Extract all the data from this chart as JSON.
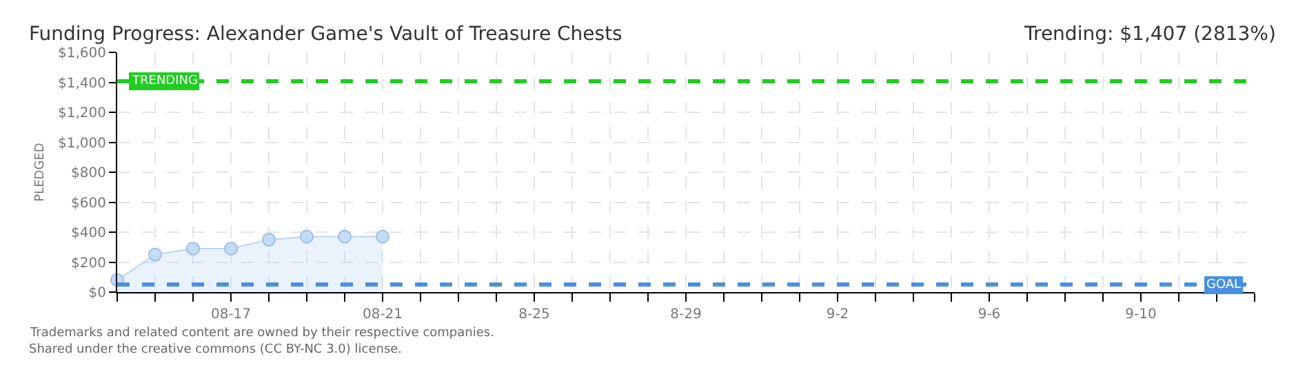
{
  "chart_data": {
    "type": "area",
    "title": "Funding Progress: Alexander Game's Vault of Treasure Chests",
    "subtitle": "Trending: $1,407 (2813%)",
    "ylabel": "PLEDGED",
    "x": [
      "--08-14",
      "--08-15",
      "--08-16",
      "--08-17",
      "--08-18",
      "--08-19",
      "--08-20",
      "--08-21"
    ],
    "series": [
      {
        "color": "#b8d4f4",
        "values": [
          80,
          250,
          290,
          290,
          350,
          370,
          370,
          370
        ]
      }
    ],
    "marker": "circle",
    "grid": true,
    "xlim": [
      "--08-14",
      "--09-13"
    ],
    "xticks": [
      {
        "value": "--08-14",
        "label": null
      },
      {
        "value": "--08-15",
        "label": null
      },
      {
        "value": "--08-16",
        "label": null
      },
      {
        "value": "--08-17",
        "label": "08-17"
      },
      {
        "value": "--08-18",
        "label": null
      },
      {
        "value": "--08-19",
        "label": null
      },
      {
        "value": "--08-20",
        "label": null
      },
      {
        "value": "--08-21",
        "label": "08-21"
      },
      {
        "value": "--08-22",
        "label": null
      },
      {
        "value": "--08-23",
        "label": null
      },
      {
        "value": "--08-24",
        "label": null
      },
      {
        "value": "--08-25",
        "label": "8-25"
      },
      {
        "value": "--08-26",
        "label": null
      },
      {
        "value": "--08-27",
        "label": null
      },
      {
        "value": "--08-28",
        "label": null
      },
      {
        "value": "--08-29",
        "label": "8-29"
      },
      {
        "value": "--08-30",
        "label": null
      },
      {
        "value": "--08-31",
        "label": null
      },
      {
        "value": "--09-01",
        "label": null
      },
      {
        "value": "--09-02",
        "label": "9-2"
      },
      {
        "value": "--09-03",
        "label": null
      },
      {
        "value": "--09-04",
        "label": null
      },
      {
        "value": "--09-05",
        "label": null
      },
      {
        "value": "--09-06",
        "label": "9-6"
      },
      {
        "value": "--09-07",
        "label": null
      },
      {
        "value": "--09-08",
        "label": null
      },
      {
        "value": "--09-09",
        "label": null
      },
      {
        "value": "--09-10",
        "label": "9-10"
      },
      {
        "value": "--09-11",
        "label": null
      },
      {
        "value": "--09-12",
        "label": null
      },
      {
        "value": "--09-13",
        "label": null
      }
    ],
    "ylim": [
      0,
      1600
    ],
    "yticks": [
      {
        "value": 0,
        "label": "$0"
      },
      {
        "value": 200,
        "label": "$200"
      },
      {
        "value": 400,
        "label": "$400"
      },
      {
        "value": 600,
        "label": "$600"
      },
      {
        "value": 800,
        "label": "$800"
      },
      {
        "value": 1000,
        "label": "$1,000"
      },
      {
        "value": 1200,
        "label": "$1,200"
      },
      {
        "value": 1400,
        "label": "$1,400"
      },
      {
        "value": 1600,
        "label": "$1,600"
      }
    ],
    "ref_lines": [
      {
        "axis": "y",
        "value": 1407,
        "label": "TRENDING",
        "color": "#22cc22",
        "line_style": "dashed"
      },
      {
        "axis": "y",
        "value": 50,
        "label": "GOAL",
        "color": "#4a90e2",
        "line_style": "dashed"
      }
    ],
    "annotations": [
      "Trademarks and related content are owned by their respective companies.",
      "Shared under the creative commons (CC BY-NC 3.0) license."
    ]
  }
}
